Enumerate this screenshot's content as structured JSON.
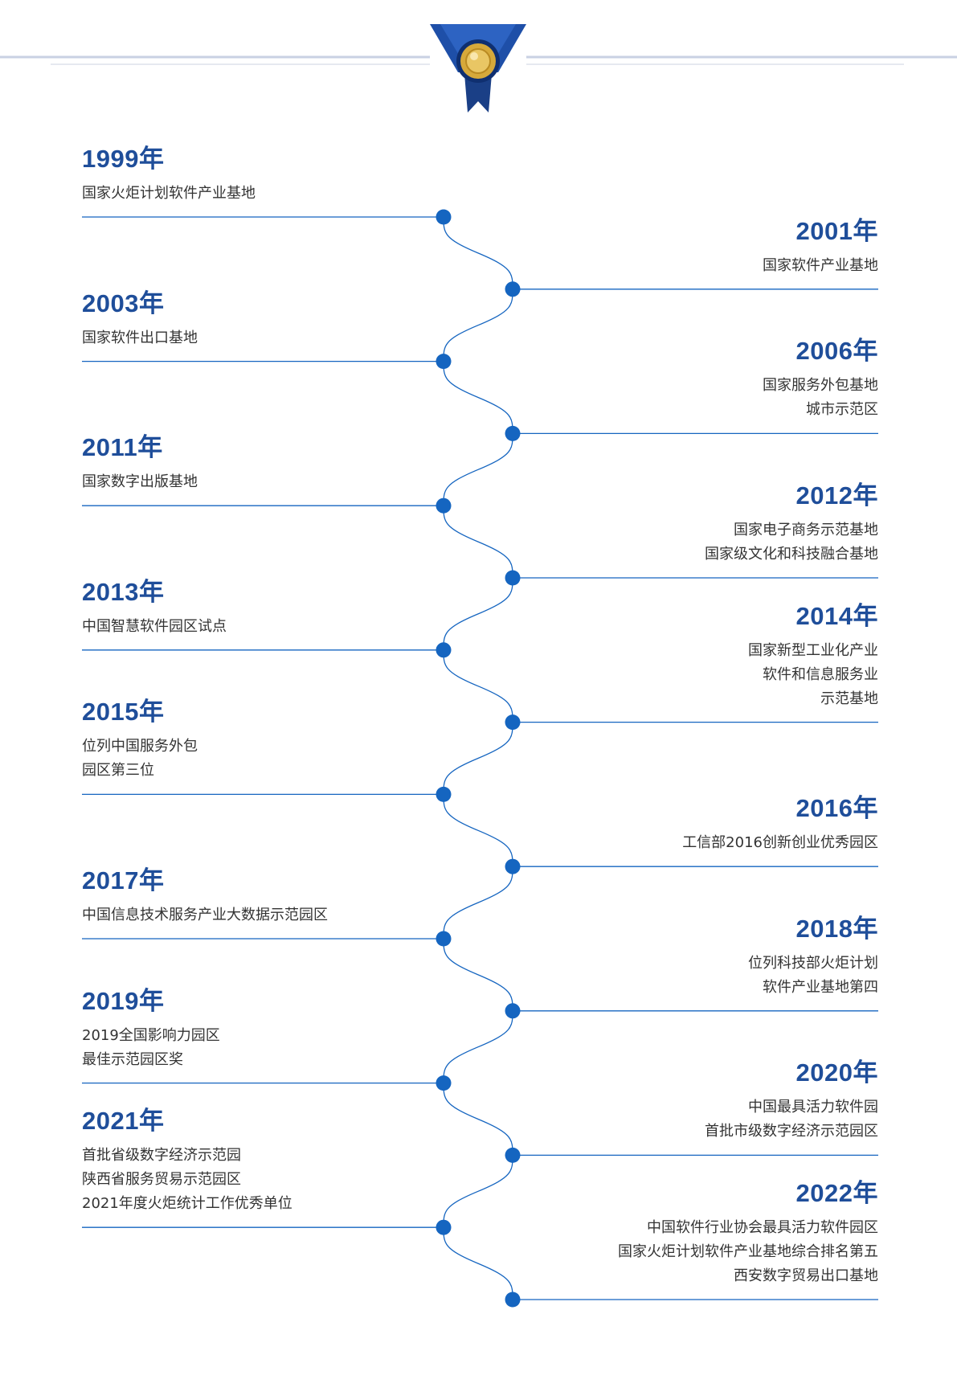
{
  "colors": {
    "accent": "#1f4e9a",
    "timeline": "#1565c0",
    "text": "#333333",
    "ribbon": "#1e4fa8",
    "medal": "#d6a93a"
  },
  "header": {
    "icon": "medal-ribbon-icon"
  },
  "entries": [
    {
      "year": "1999年",
      "side": "left",
      "lines": [
        "国家火炬计划软件产业基地"
      ]
    },
    {
      "year": "2001年",
      "side": "right",
      "lines": [
        "国家软件产业基地"
      ]
    },
    {
      "year": "2003年",
      "side": "left",
      "lines": [
        "国家软件出口基地"
      ]
    },
    {
      "year": "2006年",
      "side": "right",
      "lines": [
        "国家服务外包基地",
        "城市示范区"
      ]
    },
    {
      "year": "2011年",
      "side": "left",
      "lines": [
        "国家数字出版基地"
      ]
    },
    {
      "year": "2012年",
      "side": "right",
      "lines": [
        "国家电子商务示范基地",
        "国家级文化和科技融合基地"
      ]
    },
    {
      "year": "2013年",
      "side": "left",
      "lines": [
        "中国智慧软件园区试点"
      ]
    },
    {
      "year": "2014年",
      "side": "right",
      "lines": [
        "国家新型工业化产业",
        "软件和信息服务业",
        "示范基地"
      ]
    },
    {
      "year": "2015年",
      "side": "left",
      "lines": [
        "位列中国服务外包",
        "园区第三位"
      ]
    },
    {
      "year": "2016年",
      "side": "right",
      "lines": [
        "工信部2016创新创业优秀园区"
      ]
    },
    {
      "year": "2017年",
      "side": "left",
      "lines": [
        "中国信息技术服务产业大数据示范园区"
      ]
    },
    {
      "year": "2018年",
      "side": "right",
      "lines": [
        "位列科技部火炬计划",
        "软件产业基地第四"
      ]
    },
    {
      "year": "2019年",
      "side": "left",
      "lines": [
        "2019全国影响力园区",
        "最佳示范园区奖"
      ]
    },
    {
      "year": "2020年",
      "side": "right",
      "lines": [
        "中国最具活力软件园",
        "首批市级数字经济示范园区"
      ]
    },
    {
      "year": "2021年",
      "side": "left",
      "lines": [
        "首批省级数字经济示范园",
        "陕西省服务贸易示范园区",
        "2021年度火炬统计工作优秀单位"
      ]
    },
    {
      "year": "2022年",
      "side": "right",
      "lines": [
        "中国软件行业协会最具活力软件园区",
        "国家火炬计划软件产业基地综合排名第五",
        "西安数字贸易出口基地"
      ]
    }
  ]
}
